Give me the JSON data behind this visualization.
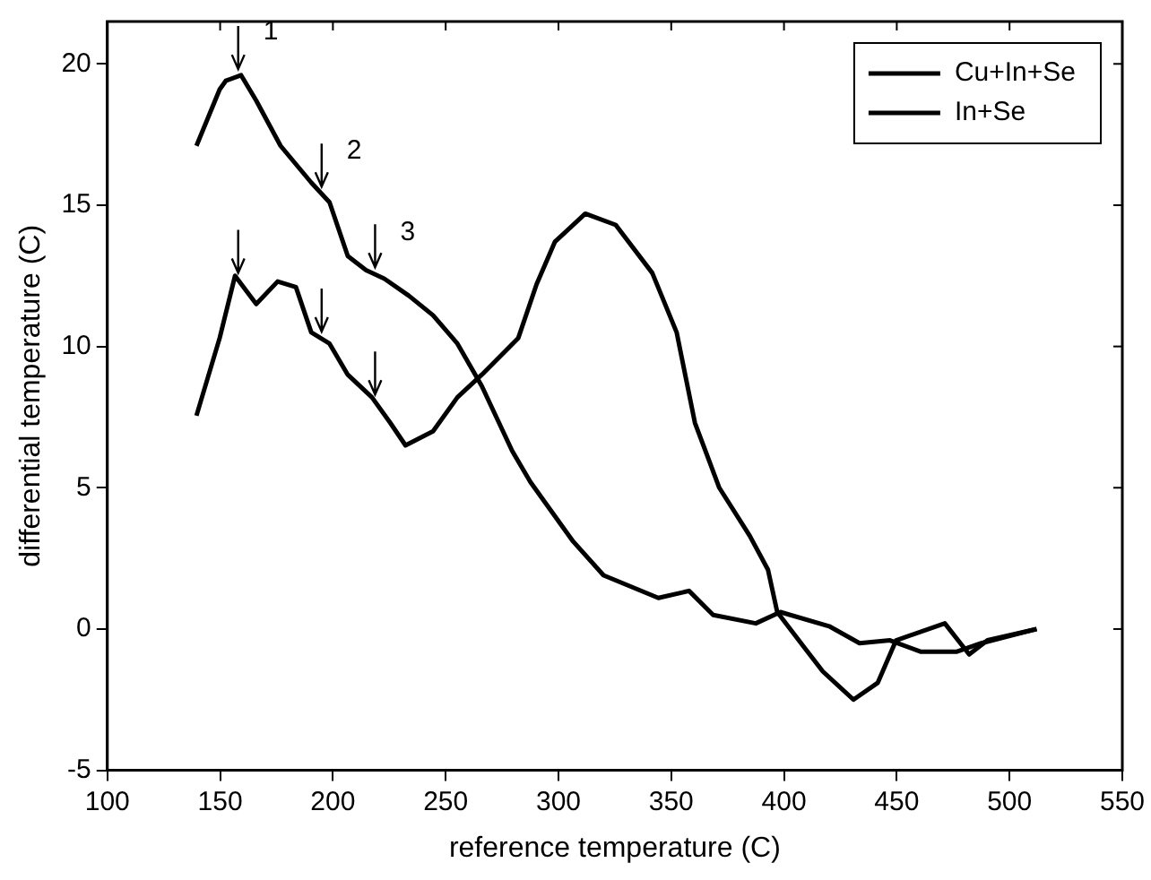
{
  "chart_data": {
    "type": "line",
    "xlabel": "reference temperature (C)",
    "ylabel": "differential temperature (C)",
    "xlim": [
      100,
      550
    ],
    "xticks": [
      100,
      150,
      200,
      250,
      300,
      350,
      400,
      450,
      500,
      550
    ],
    "ylim": [
      -5,
      21.5
    ],
    "yticks": [
      -5,
      0,
      5,
      10,
      15,
      20
    ],
    "grid": false,
    "legend": "top right",
    "marker": "none",
    "line_style": "solid",
    "annotations": [
      {
        "text": "1",
        "x": 158,
        "y": 19.6
      },
      {
        "text": "2",
        "x": 195,
        "y": 15.4
      },
      {
        "text": "3",
        "x": 218.7,
        "y": 12.5
      }
    ],
    "series": [
      {
        "name": "Cu+In+Se",
        "color": "#000000",
        "x": [
          139.5,
          149.8,
          152.5,
          159.3,
          166,
          176.8,
          190.4,
          198.5,
          206.6,
          214.7,
          222.8,
          233.6,
          244.4,
          255.2,
          266,
          279.5,
          287.6,
          306.5,
          320,
          344.3,
          357.9,
          368.6,
          387.5,
          398.4,
          420,
          433.5,
          447,
          460.5,
          476.7,
          487.5,
          512
        ],
        "values": [
          17.1,
          19.1,
          19.4,
          19.6,
          18.7,
          17.1,
          15.8,
          15.1,
          13.2,
          12.7,
          12.4,
          11.8,
          11.1,
          10.1,
          8.6,
          6.3,
          5.2,
          3.1,
          1.9,
          1.1,
          1.35,
          0.5,
          0.2,
          0.6,
          0.1,
          -0.5,
          -0.4,
          -0.8,
          -0.8,
          -0.5,
          0
        ]
      },
      {
        "name": "In+Se",
        "color": "#000000",
        "x": [
          139.5,
          149.8,
          156.6,
          166,
          175.5,
          183.6,
          190.4,
          198.5,
          206.6,
          217.3,
          225.4,
          232.2,
          244.4,
          255.2,
          266,
          282.2,
          290.3,
          298.4,
          311.9,
          325.4,
          341.6,
          352.4,
          360.5,
          371.3,
          384.8,
          392.9,
          397,
          409,
          417.2,
          430.8,
          441.6,
          449.7,
          471.3,
          482.1,
          490.2,
          512
        ],
        "values": [
          7.55,
          10.3,
          12.5,
          11.5,
          12.3,
          12.1,
          10.5,
          10.1,
          9.0,
          8.2,
          7.3,
          6.5,
          7.0,
          8.2,
          9.0,
          10.3,
          12.2,
          13.7,
          14.7,
          14.3,
          12.6,
          10.5,
          7.3,
          5.0,
          3.3,
          2.1,
          0.6,
          -0.65,
          -1.5,
          -2.5,
          -1.9,
          -0.4,
          0.2,
          -0.9,
          -0.4,
          0
        ]
      }
    ]
  }
}
